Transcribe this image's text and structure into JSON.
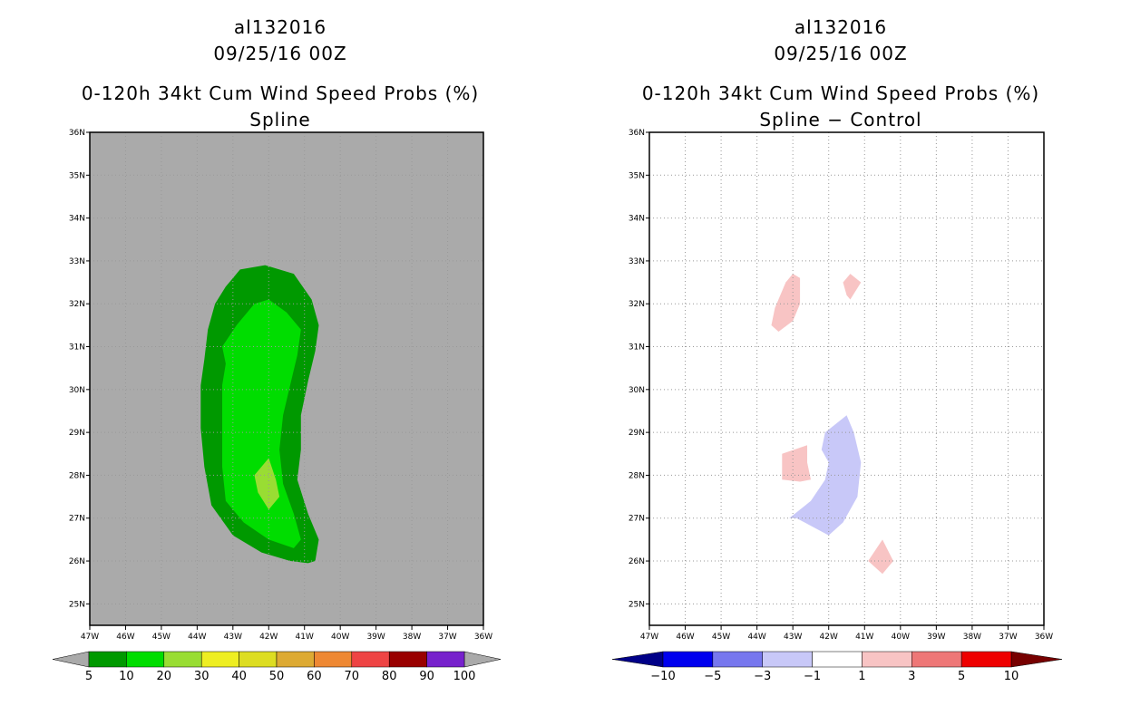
{
  "chart_data": [
    {
      "type": "contour-map",
      "title_line1": "al132016",
      "title_line2": "09/25/16 00Z",
      "title_line3": "0-120h 34kt Cum Wind Speed Probs (%)",
      "title_line4": "Spline",
      "xlim": [
        -47,
        -36
      ],
      "ylim": [
        24.5,
        36
      ],
      "x_ticks": [
        -47,
        -46,
        -45,
        -44,
        -43,
        -42,
        -41,
        -40,
        -39,
        -38,
        -37,
        -36
      ],
      "x_tick_labels": [
        "47W",
        "46W",
        "45W",
        "44W",
        "43W",
        "42W",
        "41W",
        "40W",
        "39W",
        "38W",
        "37W",
        "36W"
      ],
      "y_ticks": [
        25,
        26,
        27,
        28,
        29,
        30,
        31,
        32,
        33,
        34,
        35,
        36
      ],
      "y_tick_labels": [
        "25N",
        "26N",
        "27N",
        "28N",
        "29N",
        "30N",
        "31N",
        "32N",
        "33N",
        "34N",
        "35N",
        "36N"
      ],
      "grid": true,
      "background_color": "#aaaaaa",
      "colorbar": {
        "levels": [
          "5",
          "10",
          "20",
          "30",
          "40",
          "50",
          "60",
          "70",
          "80",
          "90",
          "100"
        ],
        "colors": [
          "#009900",
          "#00dd00",
          "#99dd33",
          "#eeee22",
          "#dddd22",
          "#ddaa33",
          "#ee8833",
          "#ee4444",
          "#990000",
          "#7722cc"
        ],
        "under_color": "#aaaaaa",
        "over_color": "#aaaaaa"
      },
      "regions": [
        {
          "level": "5-10",
          "color": "#009900",
          "polygon": [
            [
              -42.1,
              32.9
            ],
            [
              -41.3,
              32.7
            ],
            [
              -40.8,
              32.1
            ],
            [
              -40.6,
              31.5
            ],
            [
              -40.7,
              30.9
            ],
            [
              -40.9,
              30.2
            ],
            [
              -41.1,
              29.4
            ],
            [
              -41.1,
              28.6
            ],
            [
              -41.2,
              27.9
            ],
            [
              -40.9,
              27.1
            ],
            [
              -40.6,
              26.5
            ],
            [
              -40.7,
              26.0
            ],
            [
              -40.9,
              25.95
            ],
            [
              -41.4,
              26.0
            ],
            [
              -42.2,
              26.2
            ],
            [
              -43.0,
              26.6
            ],
            [
              -43.6,
              27.3
            ],
            [
              -43.8,
              28.2
            ],
            [
              -43.9,
              29.1
            ],
            [
              -43.9,
              30.1
            ],
            [
              -43.8,
              30.7
            ],
            [
              -43.7,
              31.4
            ],
            [
              -43.5,
              32.0
            ],
            [
              -43.2,
              32.4
            ],
            [
              -42.8,
              32.8
            ]
          ]
        },
        {
          "level": "10-20",
          "color": "#00dd00",
          "polygon": [
            [
              -42.0,
              32.1
            ],
            [
              -41.5,
              31.8
            ],
            [
              -41.1,
              31.4
            ],
            [
              -41.2,
              30.8
            ],
            [
              -41.4,
              30.1
            ],
            [
              -41.6,
              29.4
            ],
            [
              -41.7,
              28.6
            ],
            [
              -41.6,
              27.8
            ],
            [
              -41.3,
              27.1
            ],
            [
              -41.1,
              26.5
            ],
            [
              -41.3,
              26.3
            ],
            [
              -42.0,
              26.5
            ],
            [
              -42.7,
              26.9
            ],
            [
              -43.2,
              27.4
            ],
            [
              -43.3,
              28.2
            ],
            [
              -43.3,
              29.2
            ],
            [
              -43.3,
              30.1
            ],
            [
              -43.2,
              30.6
            ],
            [
              -43.3,
              31.0
            ],
            [
              -42.9,
              31.5
            ],
            [
              -42.4,
              32.0
            ]
          ]
        },
        {
          "level": "20-30",
          "color": "#99dd33",
          "polygon": [
            [
              -42.0,
              28.4
            ],
            [
              -41.8,
              27.9
            ],
            [
              -41.7,
              27.5
            ],
            [
              -42.0,
              27.2
            ],
            [
              -42.3,
              27.6
            ],
            [
              -42.4,
              28.0
            ]
          ]
        }
      ]
    },
    {
      "type": "contour-map",
      "title_line1": "al132016",
      "title_line2": "09/25/16 00Z",
      "title_line3": "0-120h 34kt Cum Wind Speed Probs (%)",
      "title_line4": "Spline − Control",
      "xlim": [
        -47,
        -36
      ],
      "ylim": [
        24.5,
        36
      ],
      "x_ticks": [
        -47,
        -46,
        -45,
        -44,
        -43,
        -42,
        -41,
        -40,
        -39,
        -38,
        -37,
        -36
      ],
      "x_tick_labels": [
        "47W",
        "46W",
        "45W",
        "44W",
        "43W",
        "42W",
        "41W",
        "40W",
        "39W",
        "38W",
        "37W",
        "36W"
      ],
      "y_ticks": [
        25,
        26,
        27,
        28,
        29,
        30,
        31,
        32,
        33,
        34,
        35,
        36
      ],
      "y_tick_labels": [
        "25N",
        "26N",
        "27N",
        "28N",
        "29N",
        "30N",
        "31N",
        "32N",
        "33N",
        "34N",
        "35N",
        "36N"
      ],
      "grid": true,
      "background_color": "#ffffff",
      "colorbar": {
        "levels": [
          "−10",
          "−5",
          "−3",
          "−1",
          "1",
          "3",
          "5",
          "10"
        ],
        "colors": [
          "#0000ee",
          "#7777ee",
          "#c8c8f8",
          "#ffffff",
          "#f8c4c4",
          "#ee7777",
          "#ee0000"
        ],
        "under_color": "#000088",
        "over_color": "#770000"
      },
      "regions": [
        {
          "level": "1-3",
          "color": "#f8c4c4",
          "polygon": [
            [
              -43.2,
              32.5
            ],
            [
              -43.0,
              32.7
            ],
            [
              -42.8,
              32.6
            ],
            [
              -42.8,
              32.0
            ],
            [
              -43.0,
              31.6
            ],
            [
              -43.4,
              31.35
            ],
            [
              -43.6,
              31.5
            ],
            [
              -43.5,
              31.9
            ]
          ]
        },
        {
          "level": "1-3",
          "color": "#f8c4c4",
          "polygon": [
            [
              -41.6,
              32.5
            ],
            [
              -41.4,
              32.7
            ],
            [
              -41.1,
              32.5
            ],
            [
              -41.4,
              32.1
            ],
            [
              -41.5,
              32.2
            ]
          ]
        },
        {
          "level": "1-3",
          "color": "#f8c4c4",
          "polygon": [
            [
              -43.3,
              28.5
            ],
            [
              -42.6,
              28.7
            ],
            [
              -42.6,
              28.3
            ],
            [
              -42.5,
              27.9
            ],
            [
              -42.8,
              27.85
            ],
            [
              -43.3,
              27.9
            ]
          ]
        },
        {
          "level": "1-3",
          "color": "#f8c4c4",
          "polygon": [
            [
              -40.5,
              26.5
            ],
            [
              -40.2,
              26.0
            ],
            [
              -40.5,
              25.7
            ],
            [
              -40.9,
              26.0
            ]
          ]
        },
        {
          "level": "-3--1",
          "color": "#c8c8f8",
          "polygon": [
            [
              -41.5,
              29.4
            ],
            [
              -41.3,
              29.0
            ],
            [
              -41.1,
              28.3
            ],
            [
              -41.2,
              27.5
            ],
            [
              -41.6,
              26.9
            ],
            [
              -42.0,
              26.6
            ],
            [
              -42.9,
              27.0
            ],
            [
              -43.1,
              27.0
            ],
            [
              -42.5,
              27.4
            ],
            [
              -42.1,
              27.9
            ],
            [
              -42.0,
              28.3
            ],
            [
              -42.2,
              28.6
            ],
            [
              -42.1,
              29.0
            ],
            [
              -41.8,
              29.2
            ]
          ]
        }
      ]
    }
  ]
}
